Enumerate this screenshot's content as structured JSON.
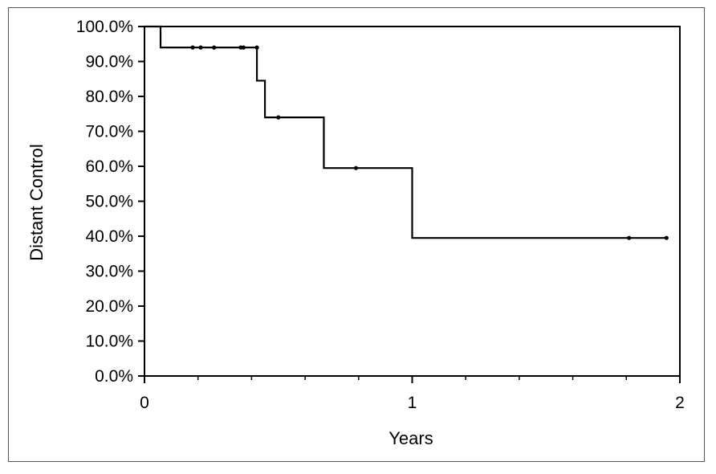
{
  "chart_data": {
    "type": "line",
    "subtype": "kaplan-meier step curve",
    "title": "",
    "xlabel": "Years",
    "ylabel": "Distant Control",
    "xlim": [
      0,
      2
    ],
    "ylim": [
      0,
      100
    ],
    "x_ticks": [
      0,
      1,
      2
    ],
    "x_tick_labels": [
      "0",
      "1",
      "2"
    ],
    "x_minor_ticks": [
      0.2,
      0.4,
      0.6,
      0.8,
      1.2,
      1.4,
      1.6,
      1.8
    ],
    "y_ticks": [
      0,
      10,
      20,
      30,
      40,
      50,
      60,
      70,
      80,
      90,
      100
    ],
    "y_tick_labels": [
      "0.0%",
      "10.0%",
      "20.0%",
      "30.0%",
      "40.0%",
      "50.0%",
      "60.0%",
      "70.0%",
      "80.0%",
      "90.0%",
      "100.0%"
    ],
    "grid": false,
    "legend": "none",
    "line_color": "#000000",
    "series": [
      {
        "steps": [
          {
            "x": 0,
            "y": 100
          },
          {
            "x": 0.06,
            "y": 94
          },
          {
            "x": 0.42,
            "y": 84.5
          },
          {
            "x": 0.45,
            "y": 74
          },
          {
            "x": 0.67,
            "y": 59.5
          },
          {
            "x": 1.0,
            "y": 39.5
          }
        ],
        "x_end": 1.95,
        "censored": [
          {
            "x": 0.18,
            "y": 94
          },
          {
            "x": 0.21,
            "y": 94
          },
          {
            "x": 0.26,
            "y": 94
          },
          {
            "x": 0.36,
            "y": 94
          },
          {
            "x": 0.37,
            "y": 94
          },
          {
            "x": 0.42,
            "y": 94
          },
          {
            "x": 0.5,
            "y": 74
          },
          {
            "x": 0.79,
            "y": 59.5
          },
          {
            "x": 1.81,
            "y": 39.5
          },
          {
            "x": 1.95,
            "y": 39.5
          }
        ]
      }
    ]
  }
}
